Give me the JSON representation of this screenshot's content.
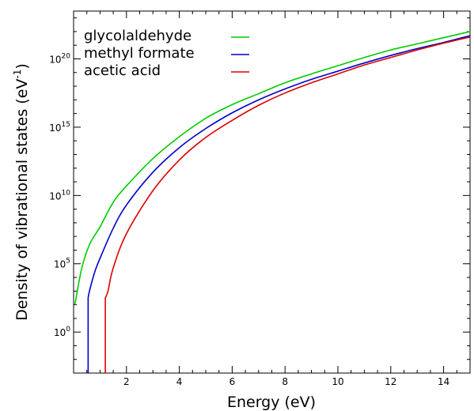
{
  "chart_data": {
    "type": "line",
    "xlabel": "Energy (eV)",
    "ylabel": "Density of vibrational states (eV",
    "ylabel_sup": "-1",
    "ylabel_close": ")",
    "xlim": [
      0,
      15
    ],
    "ylim_log10": [
      -3,
      23.5
    ],
    "yscale": "log",
    "grid": false,
    "legend_position": "top-left",
    "xticks": [
      {
        "v": 2,
        "label": "2"
      },
      {
        "v": 4,
        "label": "4"
      },
      {
        "v": 6,
        "label": "6"
      },
      {
        "v": 8,
        "label": "8"
      },
      {
        "v": 10,
        "label": "10"
      },
      {
        "v": 12,
        "label": "12"
      },
      {
        "v": 14,
        "label": "14"
      }
    ],
    "yticks": [
      {
        "exp": 0,
        "base": "10",
        "sup": "0"
      },
      {
        "exp": 5,
        "base": "10",
        "sup": "5"
      },
      {
        "exp": 10,
        "base": "10",
        "sup": "10"
      },
      {
        "exp": 15,
        "base": "10",
        "sup": "15"
      },
      {
        "exp": 20,
        "base": "10",
        "sup": "20"
      }
    ],
    "series": [
      {
        "name": "glycolaldehyde",
        "color": "#00cc00",
        "points_log10": [
          [
            0.05,
            2.0
          ],
          [
            0.3,
            4.6
          ],
          [
            0.6,
            6.4
          ],
          [
            1.0,
            7.7
          ],
          [
            1.5,
            9.5
          ],
          [
            2.0,
            10.7
          ],
          [
            3.0,
            12.7
          ],
          [
            4.0,
            14.3
          ],
          [
            5.0,
            15.65
          ],
          [
            6.0,
            16.65
          ],
          [
            7.0,
            17.45
          ],
          [
            8.0,
            18.25
          ],
          [
            9.0,
            18.9
          ],
          [
            10.0,
            19.5
          ],
          [
            11.0,
            20.1
          ],
          [
            12.0,
            20.65
          ],
          [
            13.0,
            21.1
          ],
          [
            14.0,
            21.55
          ],
          [
            15.0,
            22.0
          ]
        ]
      },
      {
        "name": "methyl formate",
        "color": "#0000cc",
        "points_log10": [
          [
            0.55,
            2.5
          ],
          [
            0.6,
            3.0
          ],
          [
            0.8,
            4.4
          ],
          [
            1.0,
            5.4
          ],
          [
            1.5,
            7.6
          ],
          [
            2.0,
            9.3
          ],
          [
            3.0,
            11.7
          ],
          [
            4.0,
            13.5
          ],
          [
            5.0,
            14.9
          ],
          [
            6.0,
            16.05
          ],
          [
            7.0,
            17.0
          ],
          [
            8.0,
            17.8
          ],
          [
            9.0,
            18.5
          ],
          [
            10.0,
            19.1
          ],
          [
            11.0,
            19.7
          ],
          [
            12.0,
            20.25
          ],
          [
            13.0,
            20.75
          ],
          [
            14.0,
            21.2
          ],
          [
            15.0,
            21.7
          ]
        ],
        "drop_at_x": 0.55
      },
      {
        "name": "acetic acid",
        "color": "#dd0000",
        "points_log10": [
          [
            1.2,
            2.5
          ],
          [
            1.3,
            3.0
          ],
          [
            1.5,
            4.7
          ],
          [
            2.0,
            7.2
          ],
          [
            3.0,
            10.35
          ],
          [
            4.0,
            12.6
          ],
          [
            5.0,
            14.25
          ],
          [
            6.0,
            15.5
          ],
          [
            7.0,
            16.6
          ],
          [
            8.0,
            17.5
          ],
          [
            9.0,
            18.25
          ],
          [
            10.0,
            18.9
          ],
          [
            11.0,
            19.55
          ],
          [
            12.0,
            20.1
          ],
          [
            13.0,
            20.65
          ],
          [
            14.0,
            21.15
          ],
          [
            15.0,
            21.6
          ]
        ],
        "drop_at_x": 1.2
      }
    ]
  }
}
